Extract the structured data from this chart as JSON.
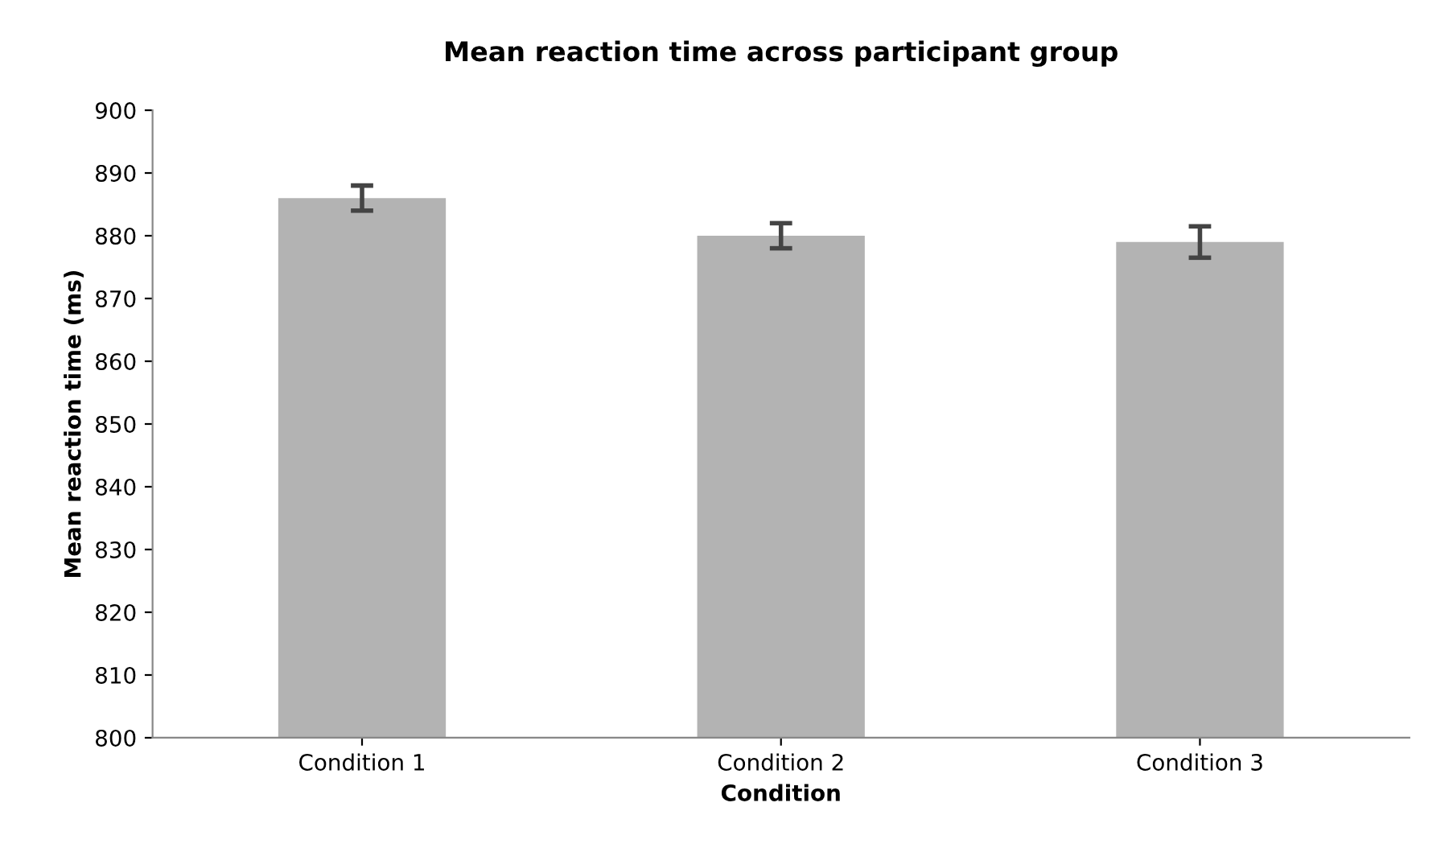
{
  "chart_data": {
    "type": "bar",
    "title": "Mean reaction time across participant group",
    "xlabel": "Condition",
    "ylabel": "Mean reaction time (ms)",
    "categories": [
      "Condition 1",
      "Condition 2",
      "Condition 3"
    ],
    "values": [
      886,
      880,
      879
    ],
    "errors": [
      2,
      2,
      2.5
    ],
    "color": "#b3b3b3",
    "ylim": [
      800,
      900
    ],
    "yticks": [
      800,
      810,
      820,
      830,
      840,
      850,
      860,
      870,
      880,
      890,
      900
    ],
    "grid": false,
    "legend": false
  }
}
